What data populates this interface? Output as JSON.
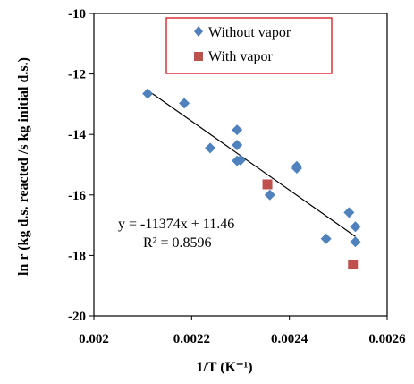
{
  "chart_data": {
    "type": "scatter",
    "xlabel": "1/T (K⁻¹)",
    "ylabel": "ln r (kg d.s. reacted /s kg initial d.s.)",
    "xlim": [
      0.002,
      0.0026
    ],
    "ylim": [
      -20,
      -10
    ],
    "xticks": [
      0.002,
      0.0022,
      0.0024,
      0.0026
    ],
    "xtick_labels": [
      "0.002",
      "0.0022",
      "0.0024",
      "0.0026"
    ],
    "yticks": [
      -20,
      -18,
      -16,
      -14,
      -12,
      -10
    ],
    "ytick_labels": [
      "-20",
      "-18",
      "-16",
      "-14",
      "-12",
      "-10"
    ],
    "grid": false,
    "legend_position": "top-right",
    "series": [
      {
        "name": "Without vapor",
        "marker": "diamond",
        "color": "#4F81BD",
        "points": [
          {
            "x": 0.00211,
            "y": -12.65
          },
          {
            "x": 0.002185,
            "y": -12.97
          },
          {
            "x": 0.002238,
            "y": -14.45
          },
          {
            "x": 0.002293,
            "y": -13.85
          },
          {
            "x": 0.002293,
            "y": -14.35
          },
          {
            "x": 0.002293,
            "y": -14.87
          },
          {
            "x": 0.0023,
            "y": -14.85
          },
          {
            "x": 0.00236,
            "y": -16.0
          },
          {
            "x": 0.002415,
            "y": -15.05
          },
          {
            "x": 0.002415,
            "y": -15.12
          },
          {
            "x": 0.002475,
            "y": -17.45
          },
          {
            "x": 0.002522,
            "y": -16.58
          },
          {
            "x": 0.002535,
            "y": -17.05
          },
          {
            "x": 0.002535,
            "y": -17.55
          }
        ]
      },
      {
        "name": "With vapor",
        "marker": "square",
        "color": "#C0504D",
        "points": [
          {
            "x": 0.002355,
            "y": -15.65
          },
          {
            "x": 0.00253,
            "y": -18.3
          }
        ]
      }
    ],
    "trendline": {
      "color": "#000000",
      "x_range": [
        0.00211,
        0.002535
      ],
      "slope": -11374,
      "intercept": 11.46
    },
    "annotations": [
      "y = -11374x + 11.46",
      "R² = 0.8596"
    ]
  }
}
